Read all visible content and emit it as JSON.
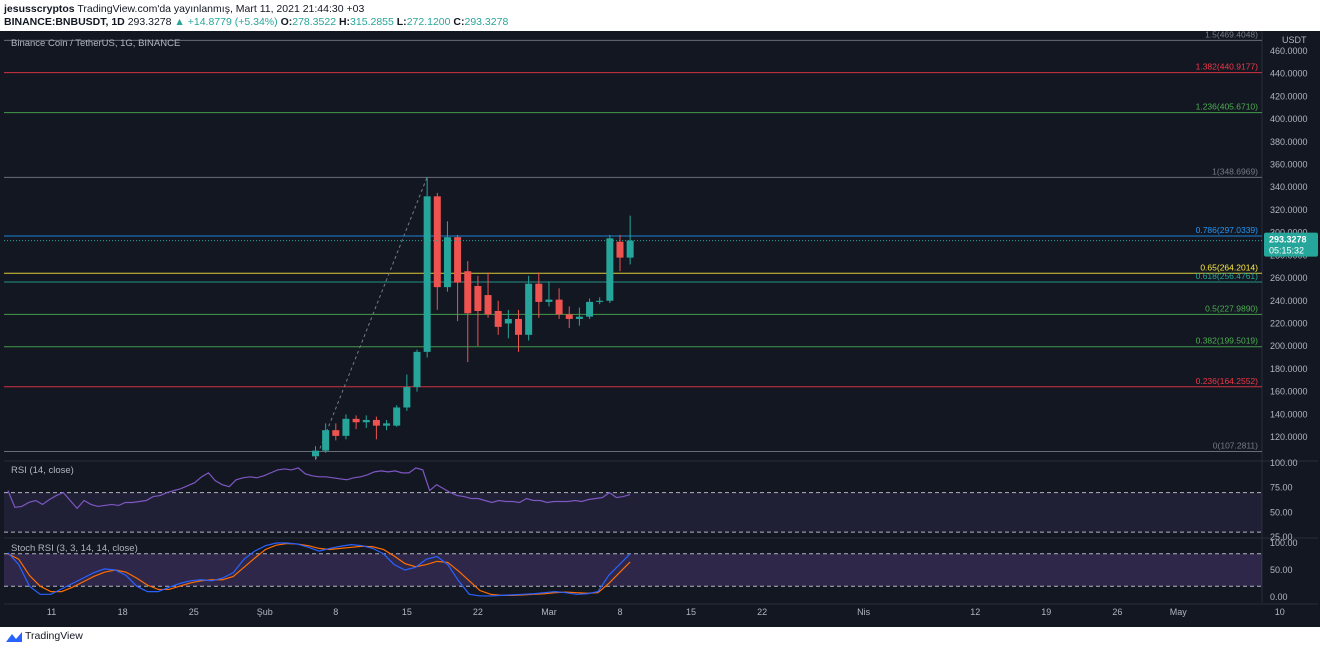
{
  "header": {
    "author": "jesusscryptos",
    "published_text": "TradingView.com'da yayınlanmış, Mart 11, 2021 21:44:30 +03",
    "symbol": "BINANCE:BNBUSDT, 1D",
    "last": "293.3278",
    "change": "+14.8779 (+5.34%)",
    "o_label": "O:",
    "o_val": "278.3522",
    "h_label": "H:",
    "h_val": "315.2855",
    "l_label": "L:",
    "l_val": "272.1200",
    "c_label": "C:",
    "c_val": "293.3278"
  },
  "chart": {
    "title": "Binance Coin / TetherUS, 1G, BINANCE",
    "currency": "USDT",
    "price_axis": [
      "460.0000",
      "440.0000",
      "420.0000",
      "400.0000",
      "380.0000",
      "360.0000",
      "340.0000",
      "320.0000",
      "300.0000",
      "280.0000",
      "260.0000",
      "240.0000",
      "220.0000",
      "200.0000",
      "180.0000",
      "160.0000",
      "140.0000",
      "120.0000"
    ],
    "price_tag": "293.3278",
    "countdown": "05:15:32",
    "fib_levels": [
      {
        "label": "1.5(469.4048)",
        "price": 469.4048,
        "color": "#787b86"
      },
      {
        "label": "1.382(440.9177)",
        "price": 440.9177,
        "color": "#f23645"
      },
      {
        "label": "1.236(405.6710)",
        "price": 405.671,
        "color": "#4caf50"
      },
      {
        "label": "1(348.6969)",
        "price": 348.6969,
        "color": "#787b86"
      },
      {
        "label": "0.786(297.0339)",
        "price": 297.0339,
        "color": "#2196f3"
      },
      {
        "label": "0.65(264.2014)",
        "price": 264.2014,
        "color": "#ffeb3b"
      },
      {
        "label": "0.618(256.4761)",
        "price": 256.4761,
        "color": "#26a69a"
      },
      {
        "label": "0.5(227.9890)",
        "price": 227.989,
        "color": "#4caf50"
      },
      {
        "label": "0.382(199.5019)",
        "price": 199.5019,
        "color": "#4caf50"
      },
      {
        "label": "0.236(164.2552)",
        "price": 164.2552,
        "color": "#f23645"
      },
      {
        "label": "0(107.2811)",
        "price": 107.2811,
        "color": "#787b86"
      }
    ],
    "candles": [
      {
        "d": "Feb 6",
        "o": 103,
        "h": 112,
        "l": 100,
        "c": 108
      },
      {
        "d": "Feb 7",
        "o": 108,
        "h": 132,
        "l": 106,
        "c": 126
      },
      {
        "d": "Feb 8",
        "o": 126,
        "h": 132,
        "l": 117,
        "c": 121
      },
      {
        "d": "Feb 9",
        "o": 121,
        "h": 140,
        "l": 118,
        "c": 136
      },
      {
        "d": "Feb 10",
        "o": 136,
        "h": 139,
        "l": 127,
        "c": 133
      },
      {
        "d": "Feb 11",
        "o": 133,
        "h": 139,
        "l": 128,
        "c": 135
      },
      {
        "d": "Feb 12",
        "o": 135,
        "h": 138,
        "l": 118,
        "c": 130
      },
      {
        "d": "Feb 13",
        "o": 130,
        "h": 135,
        "l": 126,
        "c": 132
      },
      {
        "d": "Feb 14",
        "o": 130,
        "h": 148,
        "l": 129,
        "c": 146
      },
      {
        "d": "Feb 15",
        "o": 146,
        "h": 175,
        "l": 143,
        "c": 164
      },
      {
        "d": "Feb 16",
        "o": 164,
        "h": 197,
        "l": 160,
        "c": 195
      },
      {
        "d": "Feb 17",
        "o": 195,
        "h": 349,
        "l": 190,
        "c": 332
      },
      {
        "d": "Feb 18",
        "o": 332,
        "h": 335,
        "l": 232,
        "c": 252
      },
      {
        "d": "Feb 19",
        "o": 252,
        "h": 310,
        "l": 248,
        "c": 296
      },
      {
        "d": "Feb 20",
        "o": 296,
        "h": 298,
        "l": 222,
        "c": 256
      },
      {
        "d": "Feb 21",
        "o": 266,
        "h": 275,
        "l": 186,
        "c": 229
      },
      {
        "d": "Feb 22",
        "o": 253,
        "h": 262,
        "l": 200,
        "c": 231
      },
      {
        "d": "Feb 23",
        "o": 245,
        "h": 265,
        "l": 225,
        "c": 228
      },
      {
        "d": "Feb 24",
        "o": 231,
        "h": 240,
        "l": 210,
        "c": 217
      },
      {
        "d": "Feb 25",
        "o": 220,
        "h": 232,
        "l": 207,
        "c": 224
      },
      {
        "d": "Feb 26",
        "o": 224,
        "h": 232,
        "l": 195,
        "c": 210
      },
      {
        "d": "Feb 27",
        "o": 210,
        "h": 262,
        "l": 205,
        "c": 255
      },
      {
        "d": "Feb 28",
        "o": 255,
        "h": 265,
        "l": 225,
        "c": 239
      },
      {
        "d": "Mar 1",
        "o": 239,
        "h": 257,
        "l": 235,
        "c": 241
      },
      {
        "d": "Mar 2",
        "o": 241,
        "h": 251,
        "l": 224,
        "c": 228
      },
      {
        "d": "Mar 3",
        "o": 228,
        "h": 235,
        "l": 216,
        "c": 224
      },
      {
        "d": "Mar 4",
        "o": 224,
        "h": 234,
        "l": 218,
        "c": 226
      },
      {
        "d": "Mar 5",
        "o": 226,
        "h": 242,
        "l": 224,
        "c": 239
      },
      {
        "d": "Mar 6",
        "o": 239,
        "h": 243,
        "l": 237,
        "c": 240
      },
      {
        "d": "Mar 7",
        "o": 240,
        "h": 298,
        "l": 238,
        "c": 295
      },
      {
        "d": "Mar 8",
        "o": 292,
        "h": 298,
        "l": 266,
        "c": 278
      },
      {
        "d": "Mar 9",
        "o": 278,
        "h": 315,
        "l": 272,
        "c": 293
      }
    ],
    "x_labels": [
      {
        "t": "11",
        "i": -26
      },
      {
        "t": "18",
        "i": -19
      },
      {
        "t": "25",
        "i": -12
      },
      {
        "t": "Şub",
        "i": -5
      },
      {
        "t": "8",
        "i": 2
      },
      {
        "t": "15",
        "i": 9
      },
      {
        "t": "22",
        "i": 16
      },
      {
        "t": "Mar",
        "i": 23
      },
      {
        "t": "8",
        "i": 30
      },
      {
        "t": "15",
        "i": 37
      },
      {
        "t": "22",
        "i": 44
      },
      {
        "t": "Nis",
        "i": 54
      },
      {
        "t": "12",
        "i": 65
      },
      {
        "t": "19",
        "i": 72
      },
      {
        "t": "26",
        "i": 79
      },
      {
        "t": "May",
        "i": 85
      },
      {
        "t": "10",
        "i": 95
      }
    ]
  },
  "rsi": {
    "title": "RSI (14, close)",
    "axis": [
      "100.00",
      "75.00",
      "50.00",
      "25.00"
    ],
    "values": [
      72,
      55,
      56,
      60,
      62,
      58,
      63,
      67,
      70,
      62,
      54,
      62,
      58,
      56,
      57,
      58,
      57,
      60,
      60,
      61,
      62,
      66,
      67,
      70,
      72,
      74,
      77,
      80,
      86,
      90,
      82,
      78,
      76,
      83,
      85,
      86,
      85,
      87,
      90,
      93,
      94,
      93,
      95,
      89,
      87,
      86,
      86,
      85,
      84,
      83,
      85,
      86,
      88,
      91,
      92,
      91,
      92,
      90,
      90,
      95,
      93,
      72,
      78,
      74,
      70,
      67,
      66,
      64,
      64,
      62,
      60,
      62,
      61,
      61,
      60,
      64,
      62,
      62,
      60,
      61,
      61,
      61,
      62,
      61,
      63,
      64,
      65,
      70,
      65,
      66,
      68
    ]
  },
  "stoch": {
    "title": "Stoch RSI (3, 3, 14, 14, close)",
    "axis": [
      "100.00",
      "50.00",
      "0.00"
    ],
    "k": [
      82,
      60,
      20,
      5,
      5,
      15,
      25,
      35,
      45,
      52,
      50,
      40,
      20,
      10,
      10,
      18,
      25,
      30,
      32,
      30,
      35,
      45,
      70,
      85,
      95,
      100,
      100,
      98,
      92,
      85,
      90,
      94,
      97,
      95,
      90,
      80,
      60,
      50,
      55,
      70,
      75,
      60,
      30,
      5,
      2,
      2,
      3,
      4,
      5,
      6,
      8,
      10,
      8,
      5,
      6,
      10,
      40,
      60,
      80
    ],
    "d": [
      80,
      70,
      40,
      20,
      10,
      10,
      18,
      28,
      38,
      46,
      50,
      46,
      35,
      22,
      14,
      14,
      20,
      26,
      30,
      32,
      32,
      38,
      55,
      72,
      88,
      96,
      99,
      98,
      95,
      90,
      88,
      90,
      92,
      94,
      93,
      88,
      76,
      62,
      56,
      60,
      66,
      64,
      48,
      30,
      12,
      5,
      3,
      3,
      4,
      5,
      6,
      8,
      9,
      8,
      7,
      8,
      25,
      45,
      65
    ]
  },
  "footer": {
    "brand": "TradingView"
  }
}
